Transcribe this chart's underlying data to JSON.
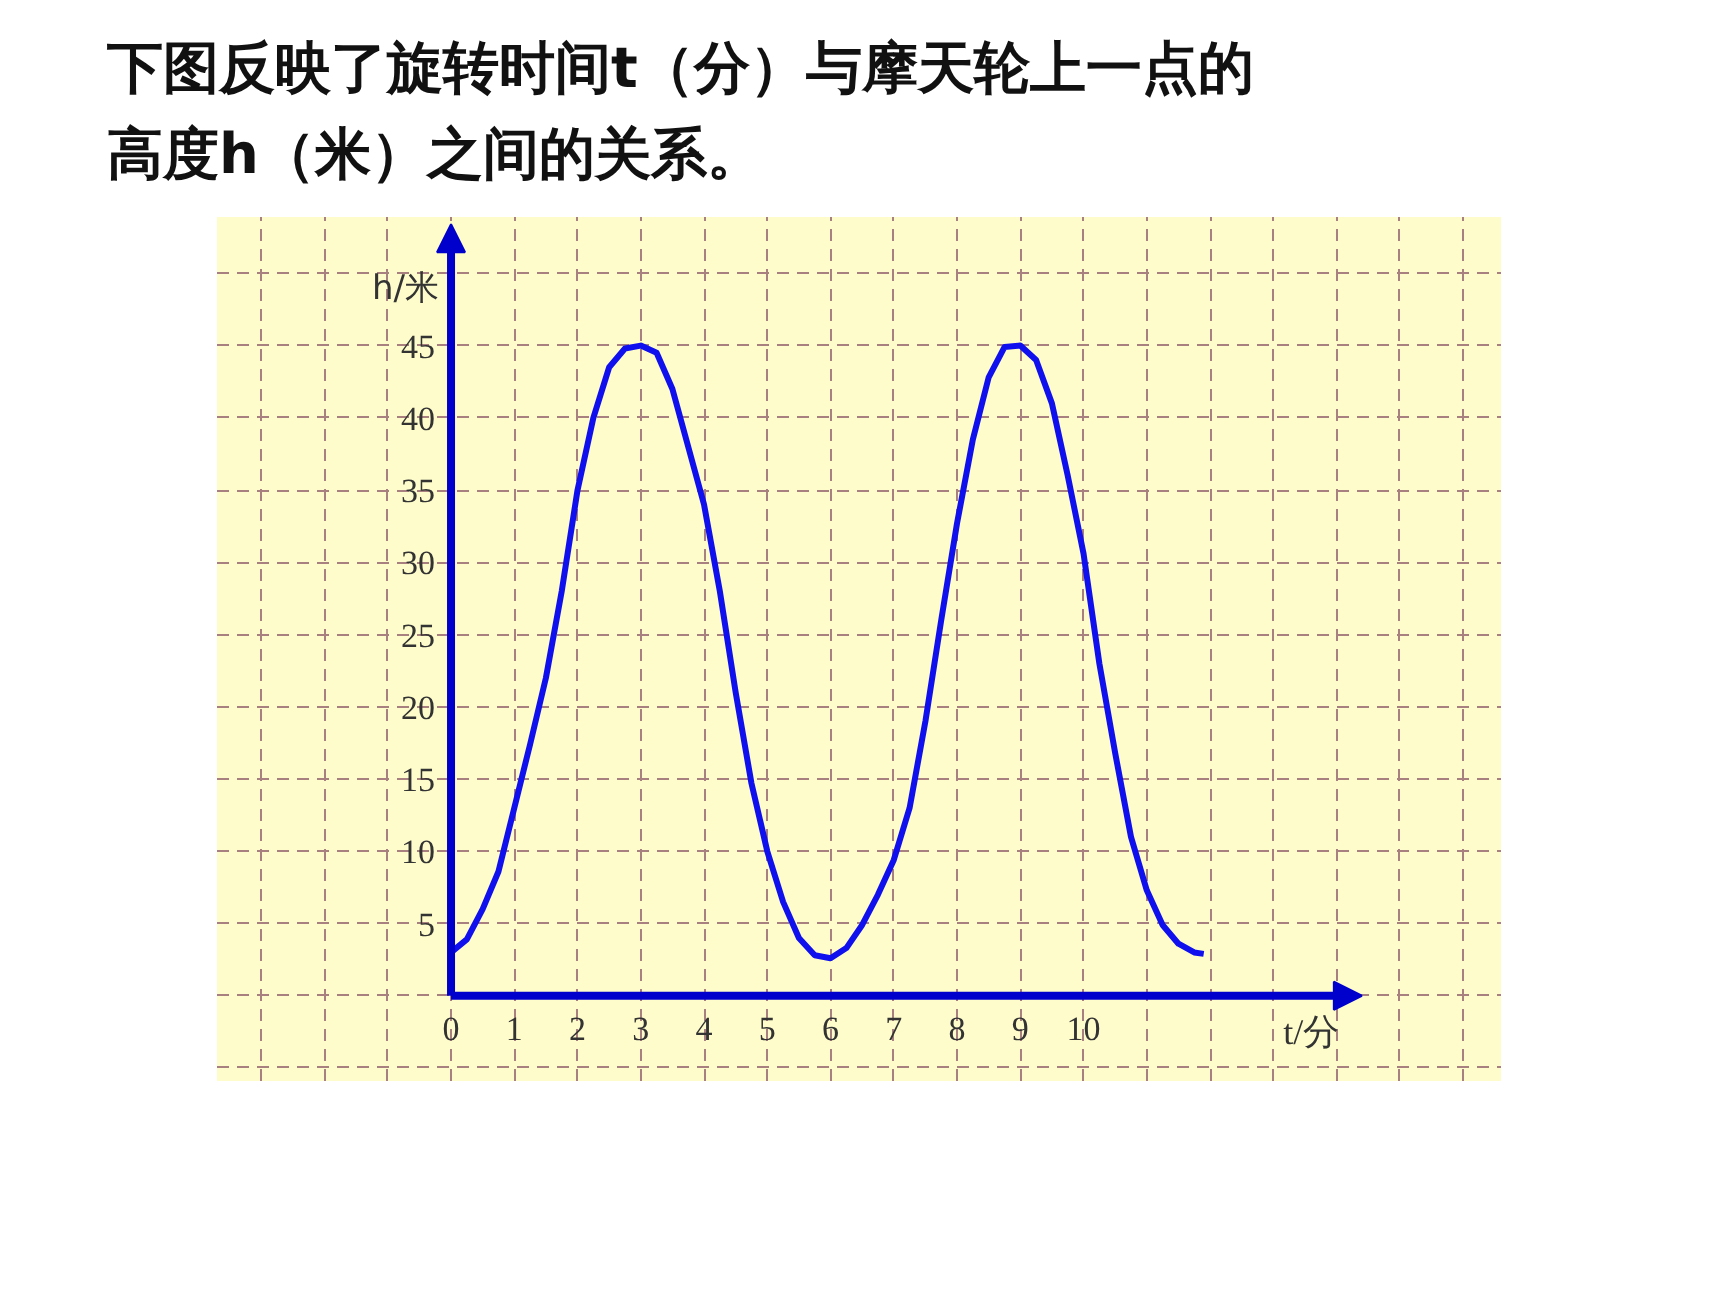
{
  "chart_data": {
    "type": "line",
    "title": "下图反映了旋转时间t（分）与摩天轮上一点的高度h（米）之间的关系。",
    "xlabel": "t/分",
    "ylabel": "h/米",
    "x": [
      0,
      0.25,
      0.5,
      0.75,
      1,
      1.25,
      1.5,
      1.75,
      2,
      2.25,
      2.5,
      2.75,
      3,
      3.25,
      3.5,
      3.75,
      4,
      4.25,
      4.5,
      4.75,
      5,
      5.25,
      5.5,
      5.75,
      6,
      6.25,
      6.5,
      6.75,
      7,
      7.25,
      7.5,
      7.75,
      8,
      8.25,
      8.5,
      8.75,
      9,
      9.25,
      9.5,
      9.75,
      10,
      10.25,
      10.5,
      10.75,
      11,
      11.25,
      11.5,
      11.75,
      11.9
    ],
    "values": [
      3,
      3.9,
      6,
      8.6,
      13,
      17.4,
      22,
      28,
      35,
      40,
      43.5,
      44.8,
      45,
      44.5,
      42,
      38,
      34,
      28,
      21,
      14.7,
      10,
      6.5,
      4,
      2.8,
      2.6,
      3.3,
      4.9,
      7,
      9.4,
      13,
      19,
      26,
      32.7,
      38.5,
      42.8,
      44.9,
      45,
      44,
      41,
      36,
      30.6,
      23,
      16.8,
      11,
      7.3,
      4.9,
      3.6,
      3,
      2.9
    ],
    "color": "#1010ee",
    "line_style": "solid",
    "grid": true,
    "xlim": [
      -3.7,
      16.6
    ],
    "ylim": [
      -5.9,
      53.9
    ],
    "xticks": [
      {
        "value": -3,
        "label": null
      },
      {
        "value": -2,
        "label": null
      },
      {
        "value": -1,
        "label": null
      },
      0,
      1,
      2,
      3,
      4,
      5,
      6,
      7,
      8,
      9,
      10,
      {
        "value": 11,
        "label": null
      },
      {
        "value": 12,
        "label": null
      },
      {
        "value": 13,
        "label": null
      },
      {
        "value": 14,
        "label": null
      },
      {
        "value": 15,
        "label": null
      },
      {
        "value": 16,
        "label": null
      }
    ],
    "yticks": [
      {
        "value": -5,
        "label": null
      },
      {
        "value": 0,
        "label": null
      },
      5,
      10,
      15,
      20,
      25,
      30,
      35,
      40,
      45,
      {
        "value": 50,
        "label": null
      }
    ]
  }
}
